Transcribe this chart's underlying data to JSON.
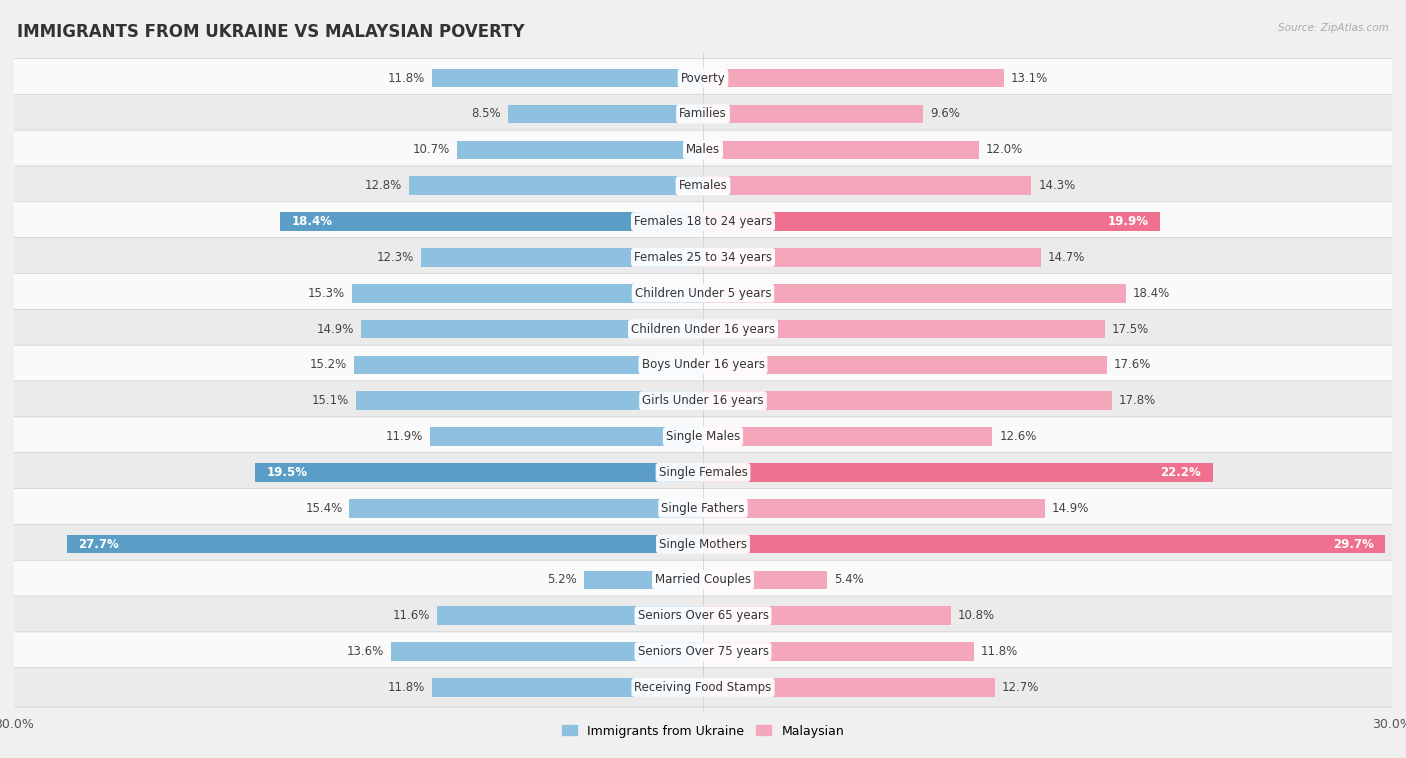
{
  "title": "IMMIGRANTS FROM UKRAINE VS MALAYSIAN POVERTY",
  "source": "Source: ZipAtlas.com",
  "categories": [
    "Poverty",
    "Families",
    "Males",
    "Females",
    "Females 18 to 24 years",
    "Females 25 to 34 years",
    "Children Under 5 years",
    "Children Under 16 years",
    "Boys Under 16 years",
    "Girls Under 16 years",
    "Single Males",
    "Single Females",
    "Single Fathers",
    "Single Mothers",
    "Married Couples",
    "Seniors Over 65 years",
    "Seniors Over 75 years",
    "Receiving Food Stamps"
  ],
  "ukraine_values": [
    11.8,
    8.5,
    10.7,
    12.8,
    18.4,
    12.3,
    15.3,
    14.9,
    15.2,
    15.1,
    11.9,
    19.5,
    15.4,
    27.7,
    5.2,
    11.6,
    13.6,
    11.8
  ],
  "malaysian_values": [
    13.1,
    9.6,
    12.0,
    14.3,
    19.9,
    14.7,
    18.4,
    17.5,
    17.6,
    17.8,
    12.6,
    22.2,
    14.9,
    29.7,
    5.4,
    10.8,
    11.8,
    12.7
  ],
  "ukraine_color_normal": "#8ec1e0",
  "malaysian_color_normal": "#f4a7bb",
  "ukraine_color_highlight": "#5a9ec8",
  "malaysian_color_highlight": "#f07090",
  "highlight_rows": [
    4,
    11,
    13
  ],
  "bar_height": 0.52,
  "xlim": 30.0,
  "bg_color": "#f0f0f0",
  "row_colors": [
    "#fafafa",
    "#ebebeb"
  ],
  "legend_ukraine": "Immigrants from Ukraine",
  "legend_malaysian": "Malaysian",
  "title_fontsize": 12,
  "label_fontsize": 8.5,
  "value_fontsize": 8.5
}
